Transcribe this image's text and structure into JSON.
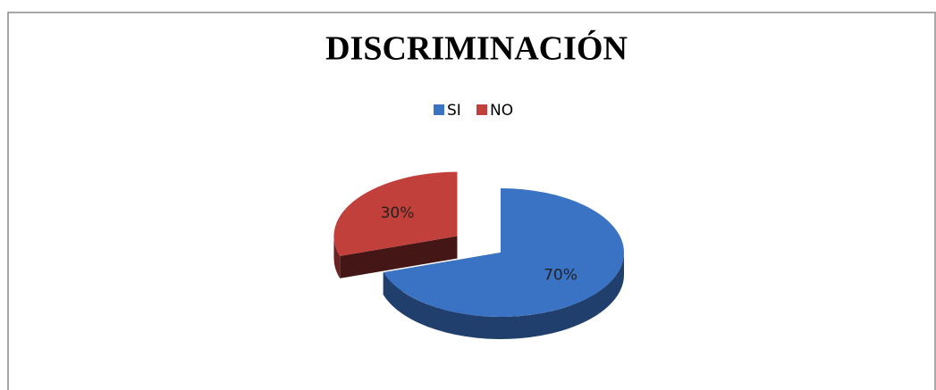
{
  "chart_data": {
    "type": "pie",
    "title": "DISCRIMINACIÓN",
    "categories": [
      "SI",
      "NO"
    ],
    "values": [
      70,
      30
    ],
    "value_labels": [
      "70%",
      "30%"
    ],
    "colors": [
      "#3a72c4",
      "#c1403c"
    ],
    "legend": "top"
  }
}
